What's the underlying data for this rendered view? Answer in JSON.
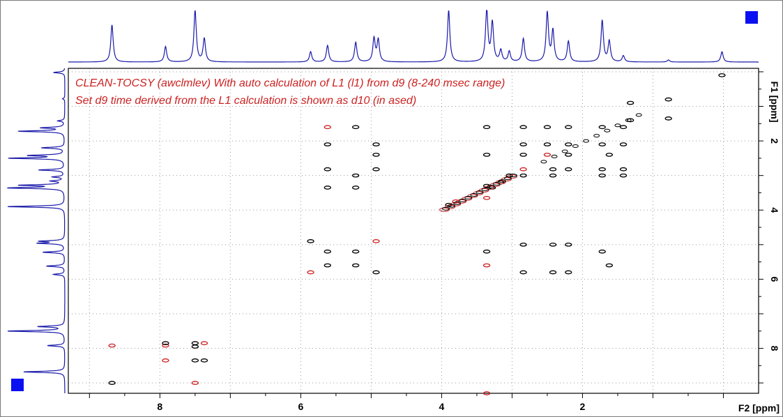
{
  "chart_data": {
    "type": "contour",
    "annotations": [
      {
        "text": "CLEAN-TOCSY (awclmlev)  With auto calculation of L1 (l1) from d9 (8-240 msec range)"
      },
      {
        "text": "Set d9 time derived from the L1 calculation is shown as d10 (in ased)"
      }
    ],
    "x_axis": {
      "label": "F2 [ppm]",
      "reversed": true,
      "range": [
        9.3,
        -0.5
      ],
      "ticks": [
        8,
        6,
        4,
        2
      ]
    },
    "y_axis": {
      "label": "F1 [ppm]",
      "reversed": true,
      "range": [
        -0.1,
        9.3
      ],
      "ticks": [
        2,
        4,
        6,
        8
      ]
    },
    "grid": true,
    "colors": {
      "positive": "#000000",
      "negative": "#cc2222",
      "projection": "#1a1aaa",
      "marker": "#0a10f0",
      "grid": "#9a9a9a"
    },
    "projection_peaks": [
      {
        "ppm": 8.68,
        "height": 0.72
      },
      {
        "ppm": 7.92,
        "height": 0.3
      },
      {
        "ppm": 7.5,
        "height": 1.0
      },
      {
        "ppm": 7.37,
        "height": 0.45
      },
      {
        "ppm": 5.86,
        "height": 0.2
      },
      {
        "ppm": 5.62,
        "height": 0.32
      },
      {
        "ppm": 5.22,
        "height": 0.38
      },
      {
        "ppm": 4.96,
        "height": 0.45
      },
      {
        "ppm": 4.9,
        "height": 0.42
      },
      {
        "ppm": 3.9,
        "height": 1.0
      },
      {
        "ppm": 3.36,
        "height": 1.0
      },
      {
        "ppm": 3.28,
        "height": 0.75
      },
      {
        "ppm": 3.16,
        "height": 0.22
      },
      {
        "ppm": 3.04,
        "height": 0.2
      },
      {
        "ppm": 2.84,
        "height": 0.45
      },
      {
        "ppm": 2.5,
        "height": 0.95
      },
      {
        "ppm": 2.42,
        "height": 0.6
      },
      {
        "ppm": 2.2,
        "height": 0.4
      },
      {
        "ppm": 1.72,
        "height": 0.8
      },
      {
        "ppm": 1.62,
        "height": 0.4
      },
      {
        "ppm": 1.42,
        "height": 0.12
      },
      {
        "ppm": 0.78,
        "height": 0.04
      },
      {
        "ppm": 0.02,
        "height": 0.2
      }
    ],
    "cross_peaks": [
      {
        "x": 8.68,
        "y": 7.92,
        "s": "n"
      },
      {
        "x": 8.68,
        "y": 9.0,
        "s": "p"
      },
      {
        "x": 7.92,
        "y": 7.92,
        "s": "n"
      },
      {
        "x": 7.92,
        "y": 8.35,
        "s": "n"
      },
      {
        "x": 7.92,
        "y": 7.85,
        "s": "p"
      },
      {
        "x": 7.5,
        "y": 7.85,
        "s": "p"
      },
      {
        "x": 7.5,
        "y": 7.95,
        "s": "p"
      },
      {
        "x": 7.5,
        "y": 8.35,
        "s": "p"
      },
      {
        "x": 7.5,
        "y": 9.0,
        "s": "n"
      },
      {
        "x": 7.37,
        "y": 7.85,
        "s": "n"
      },
      {
        "x": 7.37,
        "y": 8.35,
        "s": "p"
      },
      {
        "x": 5.86,
        "y": 4.9,
        "s": "p"
      },
      {
        "x": 5.86,
        "y": 5.8,
        "s": "n"
      },
      {
        "x": 5.62,
        "y": 1.6,
        "s": "n"
      },
      {
        "x": 5.62,
        "y": 2.1,
        "s": "p"
      },
      {
        "x": 5.62,
        "y": 2.82,
        "s": "p"
      },
      {
        "x": 5.62,
        "y": 3.35,
        "s": "p"
      },
      {
        "x": 5.62,
        "y": 5.2,
        "s": "p"
      },
      {
        "x": 5.62,
        "y": 5.6,
        "s": "p"
      },
      {
        "x": 5.22,
        "y": 1.6,
        "s": "p"
      },
      {
        "x": 5.22,
        "y": 3.0,
        "s": "p"
      },
      {
        "x": 5.22,
        "y": 3.35,
        "s": "p"
      },
      {
        "x": 5.22,
        "y": 5.2,
        "s": "p"
      },
      {
        "x": 5.22,
        "y": 5.6,
        "s": "p"
      },
      {
        "x": 4.93,
        "y": 4.9,
        "s": "n"
      },
      {
        "x": 4.93,
        "y": 2.1,
        "s": "p"
      },
      {
        "x": 4.93,
        "y": 2.4,
        "s": "p"
      },
      {
        "x": 4.93,
        "y": 2.82,
        "s": "p"
      },
      {
        "x": 4.93,
        "y": 5.8,
        "s": "p"
      },
      {
        "x": 3.9,
        "y": 3.85,
        "s": "p"
      },
      {
        "x": 3.8,
        "y": 3.75,
        "s": "n"
      },
      {
        "x": 3.36,
        "y": 3.3,
        "s": "p"
      },
      {
        "x": 3.36,
        "y": 3.65,
        "s": "n"
      },
      {
        "x": 3.28,
        "y": 3.35,
        "s": "p"
      },
      {
        "x": 3.16,
        "y": 3.2,
        "s": "p"
      },
      {
        "x": 3.04,
        "y": 3.0,
        "s": "p"
      },
      {
        "x": 3.36,
        "y": 5.2,
        "s": "p"
      },
      {
        "x": 3.36,
        "y": 5.6,
        "s": "n"
      },
      {
        "x": 3.36,
        "y": 1.6,
        "s": "p"
      },
      {
        "x": 3.36,
        "y": 2.4,
        "s": "p"
      },
      {
        "x": 3.36,
        "y": 9.3,
        "s": "n"
      },
      {
        "x": 2.84,
        "y": 1.6,
        "s": "p"
      },
      {
        "x": 2.84,
        "y": 2.1,
        "s": "p"
      },
      {
        "x": 2.84,
        "y": 2.4,
        "s": "p"
      },
      {
        "x": 2.84,
        "y": 2.82,
        "s": "n"
      },
      {
        "x": 2.84,
        "y": 3.0,
        "s": "p"
      },
      {
        "x": 2.84,
        "y": 5.0,
        "s": "p"
      },
      {
        "x": 2.84,
        "y": 5.8,
        "s": "p"
      },
      {
        "x": 2.5,
        "y": 1.6,
        "s": "p"
      },
      {
        "x": 2.5,
        "y": 2.1,
        "s": "p"
      },
      {
        "x": 2.5,
        "y": 2.4,
        "s": "n"
      },
      {
        "x": 2.42,
        "y": 2.82,
        "s": "p"
      },
      {
        "x": 2.42,
        "y": 3.0,
        "s": "p"
      },
      {
        "x": 2.42,
        "y": 5.0,
        "s": "p"
      },
      {
        "x": 2.42,
        "y": 5.8,
        "s": "p"
      },
      {
        "x": 2.2,
        "y": 1.6,
        "s": "p"
      },
      {
        "x": 2.2,
        "y": 2.1,
        "s": "p"
      },
      {
        "x": 2.2,
        "y": 2.4,
        "s": "p"
      },
      {
        "x": 2.2,
        "y": 2.82,
        "s": "p"
      },
      {
        "x": 2.2,
        "y": 5.0,
        "s": "p"
      },
      {
        "x": 2.2,
        "y": 5.8,
        "s": "p"
      },
      {
        "x": 1.72,
        "y": 1.6,
        "s": "p"
      },
      {
        "x": 1.72,
        "y": 2.1,
        "s": "p"
      },
      {
        "x": 1.72,
        "y": 2.82,
        "s": "p"
      },
      {
        "x": 1.72,
        "y": 3.0,
        "s": "p"
      },
      {
        "x": 1.72,
        "y": 5.2,
        "s": "p"
      },
      {
        "x": 1.62,
        "y": 5.6,
        "s": "p"
      },
      {
        "x": 1.62,
        "y": 2.4,
        "s": "p"
      },
      {
        "x": 1.42,
        "y": 1.6,
        "s": "p"
      },
      {
        "x": 1.42,
        "y": 2.1,
        "s": "p"
      },
      {
        "x": 1.42,
        "y": 2.82,
        "s": "p"
      },
      {
        "x": 1.42,
        "y": 3.0,
        "s": "p"
      },
      {
        "x": 1.32,
        "y": 1.4,
        "s": "p"
      },
      {
        "x": 1.32,
        "y": 0.9,
        "s": "p"
      },
      {
        "x": 0.78,
        "y": 0.8,
        "s": "p"
      },
      {
        "x": 0.78,
        "y": 1.35,
        "s": "p"
      },
      {
        "x": 0.02,
        "y": 0.1,
        "s": "p"
      }
    ]
  }
}
